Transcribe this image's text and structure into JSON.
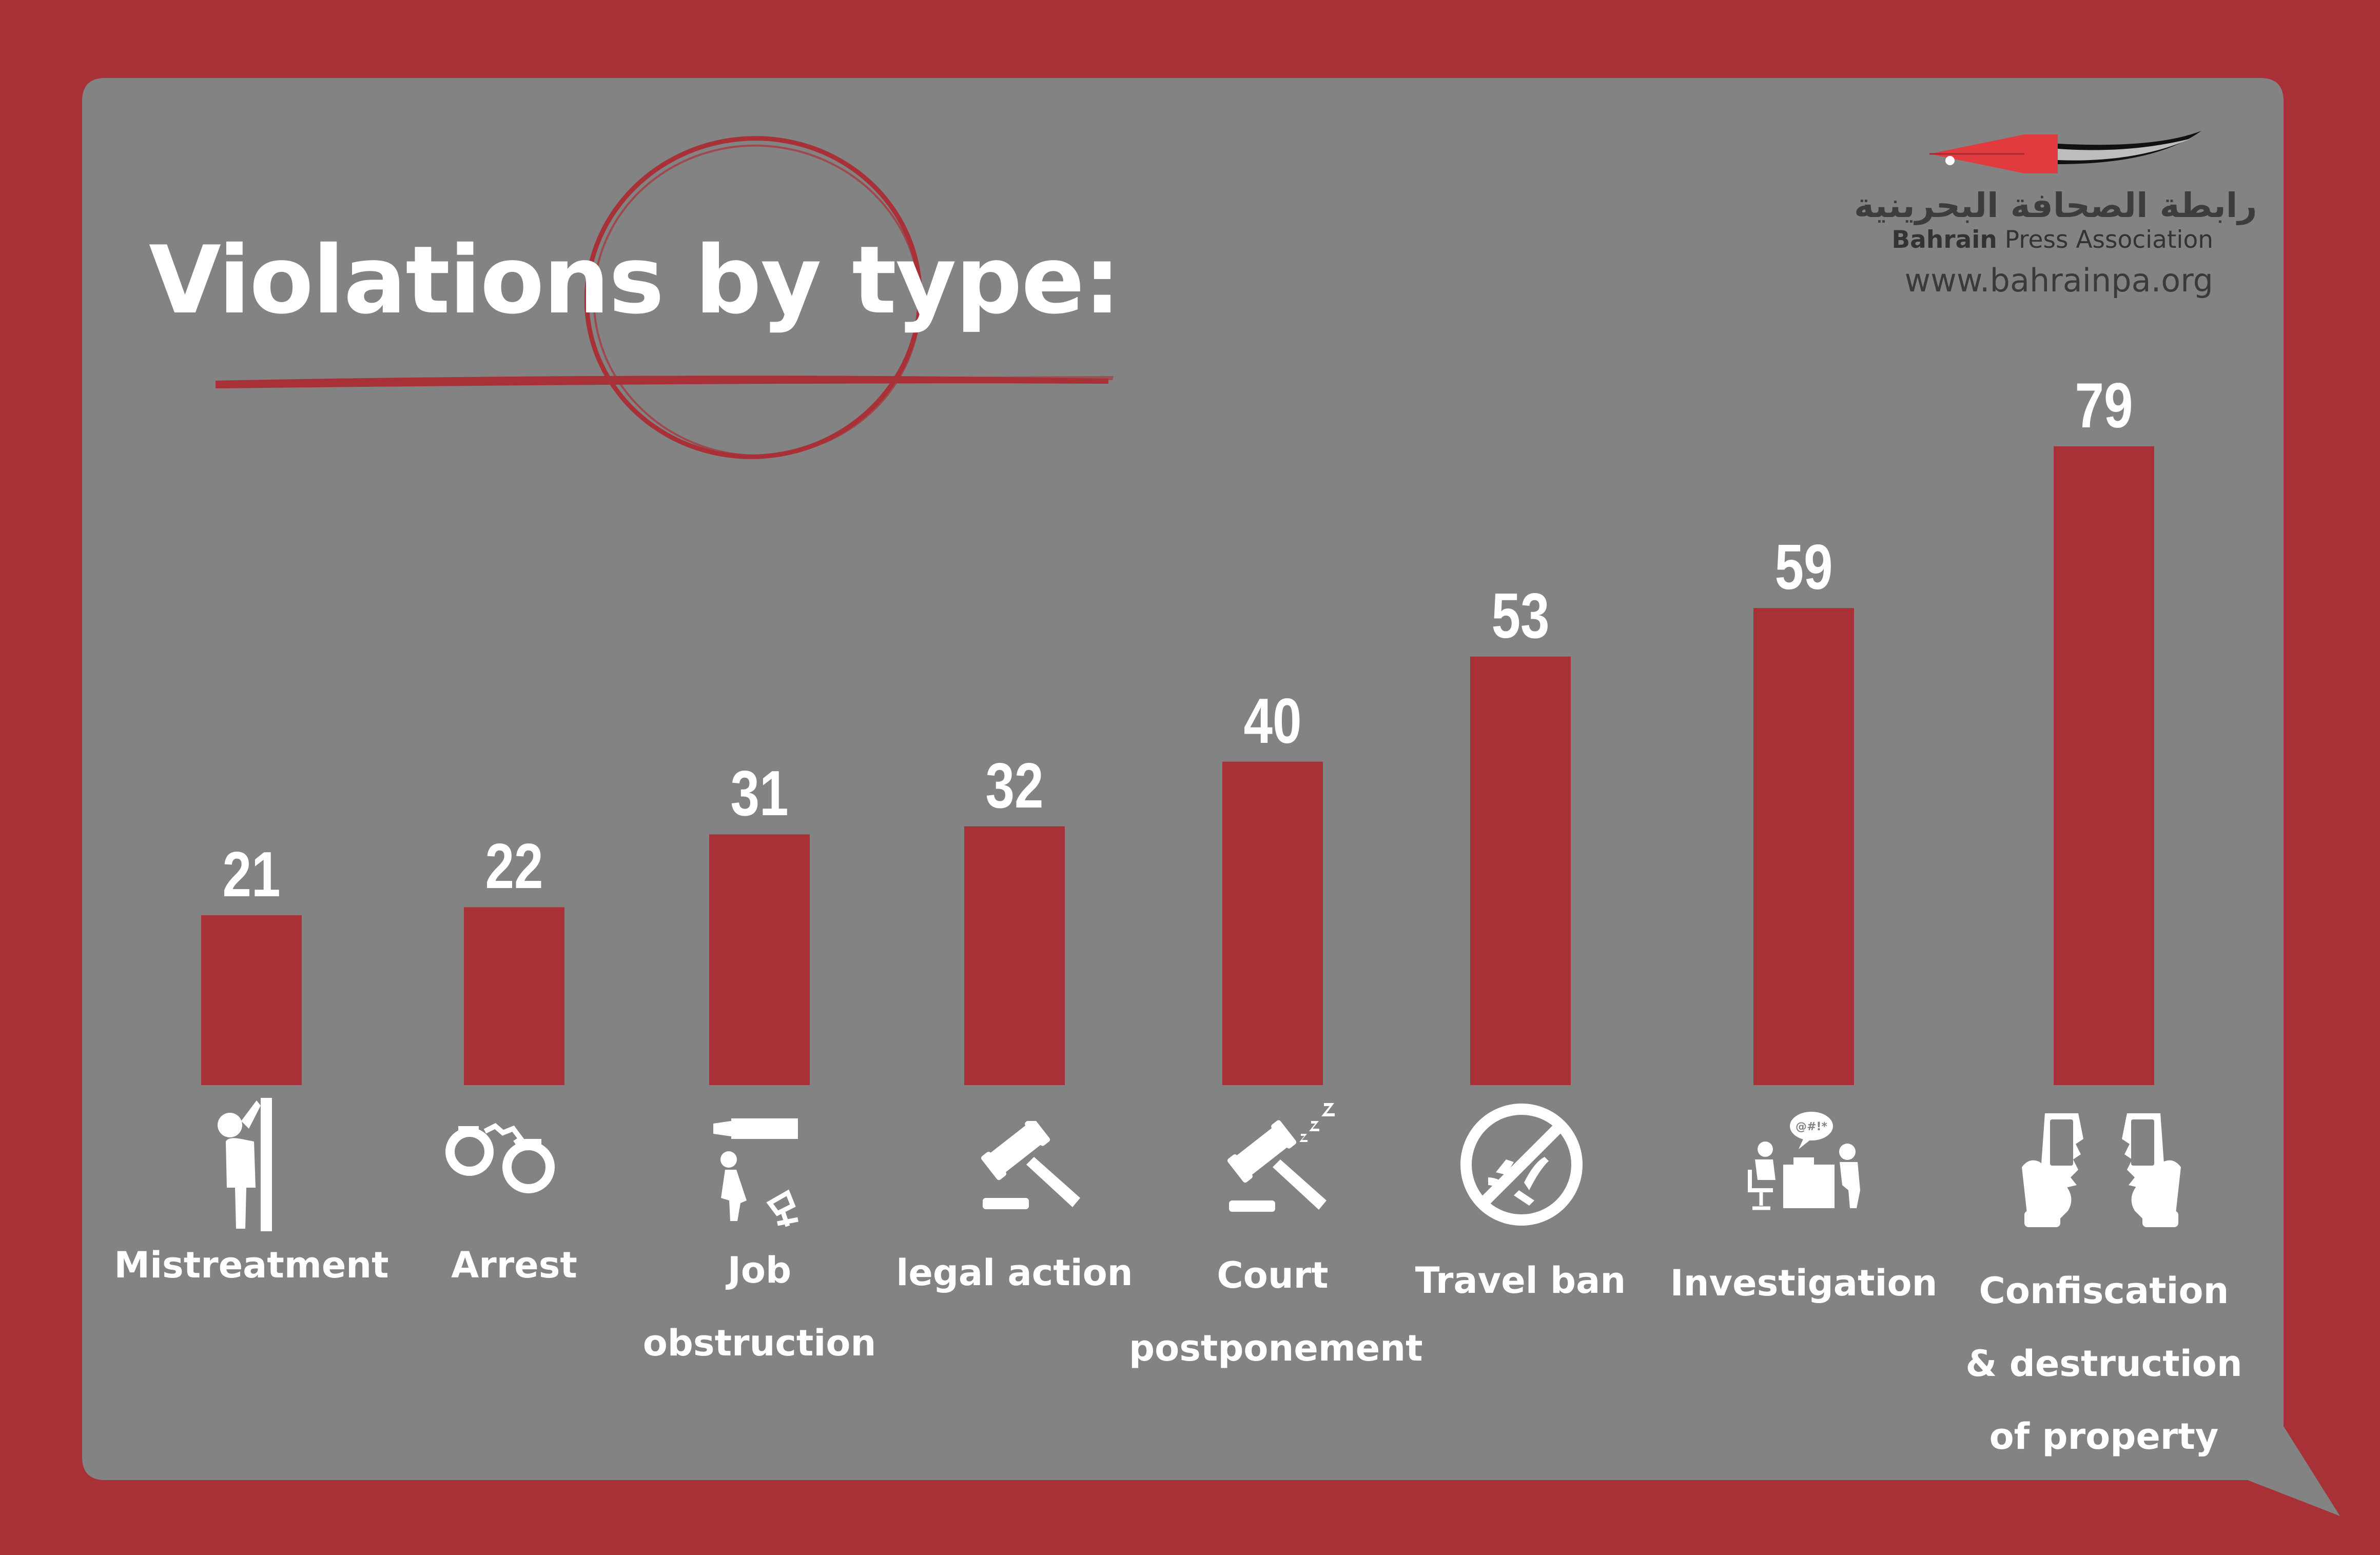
{
  "colors": {
    "frame": "#a83037",
    "panel": "#838383",
    "bar": "#a83037",
    "text": "#ffffff",
    "accent_red": "#e23b3f"
  },
  "header": {
    "title": "Violations by type:"
  },
  "logo": {
    "arabic_name": "رابطة الصحافة البحرينية",
    "name_bold": "Bahrain",
    "name_rest": " Press Association",
    "url": "www.bahrainpa.org",
    "icon": "fountain-pen-nib-icon"
  },
  "chart_data": {
    "type": "bar",
    "categories": [
      "Mistreatment",
      "Arrest",
      "Job obstruction",
      "legal action",
      "Court postponement",
      "Travel ban",
      "Investigation",
      "Confiscation & destruction of property"
    ],
    "category_lines": [
      [
        "Mistreatment"
      ],
      [
        "Arrest"
      ],
      [
        "Job",
        "obstruction"
      ],
      [
        "legal action"
      ],
      [
        "Court",
        "postponement"
      ],
      [
        "Travel ban"
      ],
      [
        "Investigation"
      ],
      [
        "Confiscation",
        "& destruction",
        "of property"
      ]
    ],
    "values": [
      21,
      22,
      31,
      32,
      40,
      53,
      59,
      79
    ],
    "icons": [
      "person-against-wall-icon",
      "handcuffs-icon",
      "person-pushed-from-chair-icon",
      "judge-gavel-icon",
      "sleeping-gavel-icon",
      "no-airplane-icon",
      "interrogation-icon",
      "broken-phones-icon"
    ],
    "title": "Violations by type:",
    "xlabel": "",
    "ylabel": "",
    "ylim": [
      0,
      79
    ],
    "grid": false,
    "legend": "none"
  }
}
